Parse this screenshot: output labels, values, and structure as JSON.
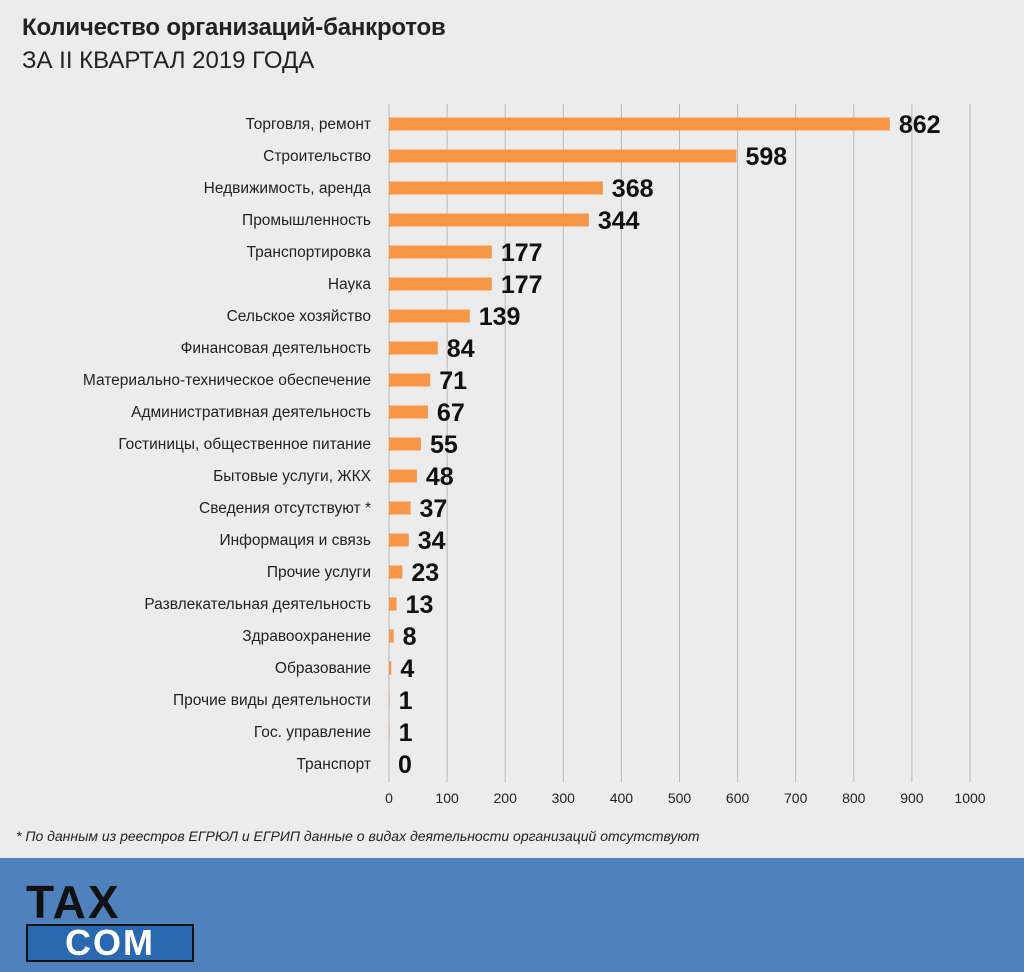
{
  "header": {
    "title": "Количество организаций-банкротов",
    "subtitle": "ЗА II КВАРТАЛ 2019 ГОДА"
  },
  "colors": {
    "bar": "#f79646",
    "grid": "#b8b8b8",
    "footer": "#4f81bd"
  },
  "chart_data": {
    "type": "bar",
    "orientation": "horizontal",
    "categories": [
      "Торговля, ремонт",
      "Строительство",
      "Недвижимость, аренда",
      "Промышленность",
      "Транспортировка",
      "Наука",
      "Сельское хозяйство",
      "Финансовая деятельность",
      "Материально-техническое обеспечение",
      "Административная деятельность",
      "Гостиницы, общественное питание",
      "Бытовые услуги, ЖКХ",
      "Сведения отсутствуют *",
      "Информация и связь",
      "Прочие услуги",
      "Развлекательная деятельность",
      "Здравоохранение",
      "Образование",
      "Прочие виды деятельности",
      "Гос. управление",
      "Транспорт"
    ],
    "values": [
      862,
      598,
      368,
      344,
      177,
      177,
      139,
      84,
      71,
      67,
      55,
      48,
      37,
      34,
      23,
      13,
      8,
      4,
      1,
      1,
      0
    ],
    "xlim": [
      0,
      1000
    ],
    "xticks": [
      "0",
      "100",
      "200",
      "300",
      "400",
      "500",
      "600",
      "700",
      "800",
      "900",
      "1000"
    ],
    "grid": true,
    "legend": "none"
  },
  "footnote": "* По данным из реестров ЕГРЮЛ и ЕГРИП данные о видах деятельности организаций отсутствуют",
  "logo": {
    "line1": "TAX",
    "line2": "COM"
  }
}
